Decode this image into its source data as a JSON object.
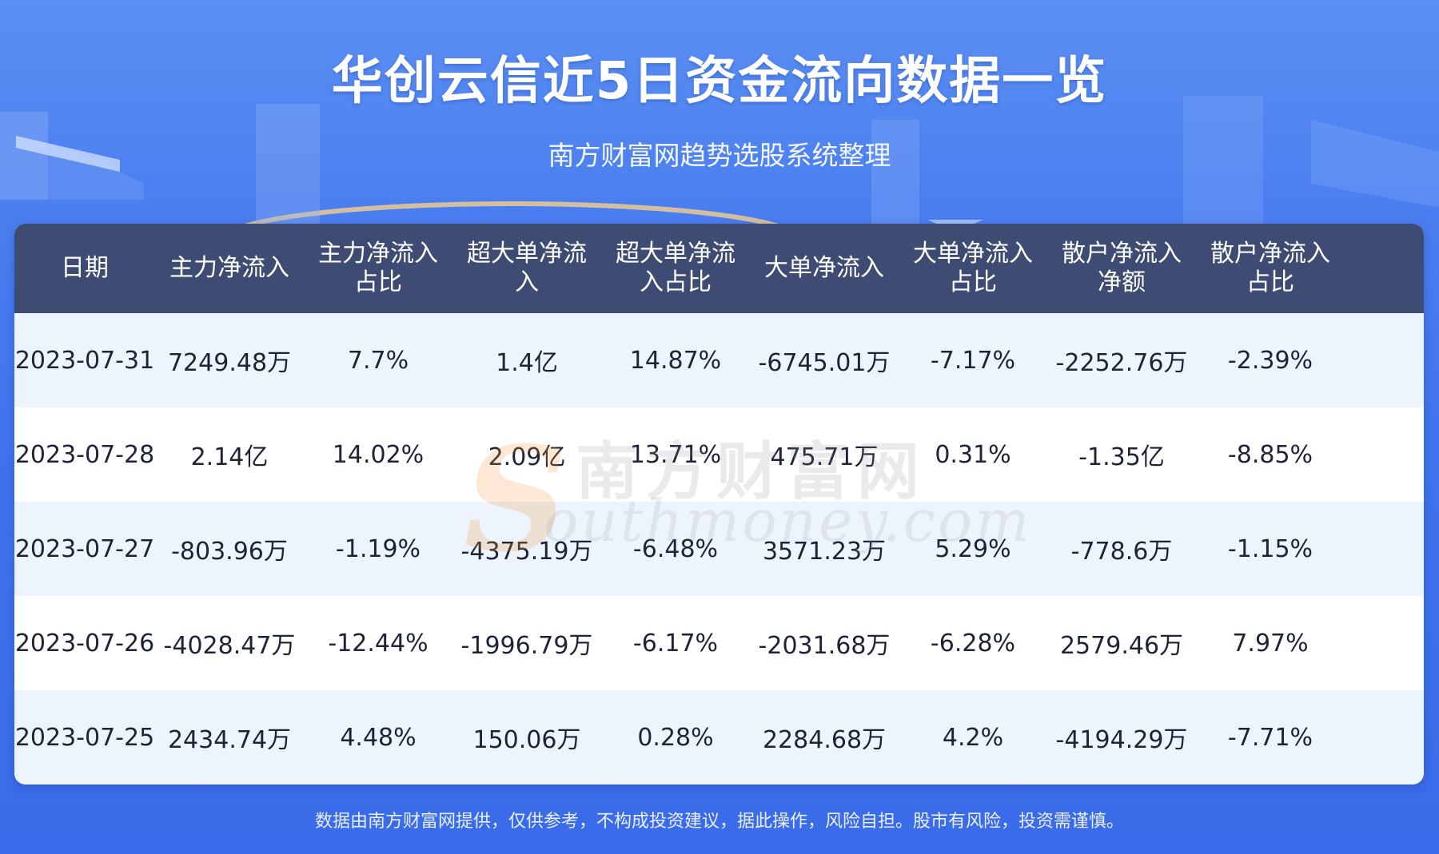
{
  "title": "华创云信近5日资金流向数据一览",
  "subtitle": "南方财富网趋势选股系统整理",
  "table": {
    "headers": [
      "日期",
      "主力净流入",
      "主力净流入\n占比",
      "超大单净流\n入",
      "超大单净流\n入占比",
      "大单净流入",
      "大单净流入\n占比",
      "散户净流入\n净额",
      "散户净流入\n占比"
    ],
    "rows": [
      [
        "2023-07-31",
        "7249.48万",
        "7.7%",
        "1.4亿",
        "14.87%",
        "-6745.01万",
        "-7.17%",
        "-2252.76万",
        "-2.39%"
      ],
      [
        "2023-07-28",
        "2.14亿",
        "14.02%",
        "2.09亿",
        "13.71%",
        "475.71万",
        "0.31%",
        "-1.35亿",
        "-8.85%"
      ],
      [
        "2023-07-27",
        "-803.96万",
        "-1.19%",
        "-4375.19万",
        "-6.48%",
        "3571.23万",
        "5.29%",
        "-778.6万",
        "-1.15%"
      ],
      [
        "2023-07-26",
        "-4028.47万",
        "-12.44%",
        "-1996.79万",
        "-6.17%",
        "-2031.68万",
        "-6.28%",
        "2579.46万",
        "7.97%"
      ],
      [
        "2023-07-25",
        "2434.74万",
        "4.48%",
        "150.06万",
        "0.28%",
        "2284.68万",
        "4.2%",
        "-4194.29万",
        "-7.71%"
      ]
    ]
  },
  "watermark": {
    "chinese": "南方财富网",
    "english": "outhmoney.com",
    "letter": "S"
  },
  "footer": "数据由南方财富网提供，仅供参考，不构成投资建议，据此操作，风险自担。股市有风险，投资需谨慎。",
  "colors": {
    "background": "#4a7ef0",
    "header_bg": "#3e4b72",
    "row_alt": "#eef4fe",
    "text": "#1e2433"
  }
}
